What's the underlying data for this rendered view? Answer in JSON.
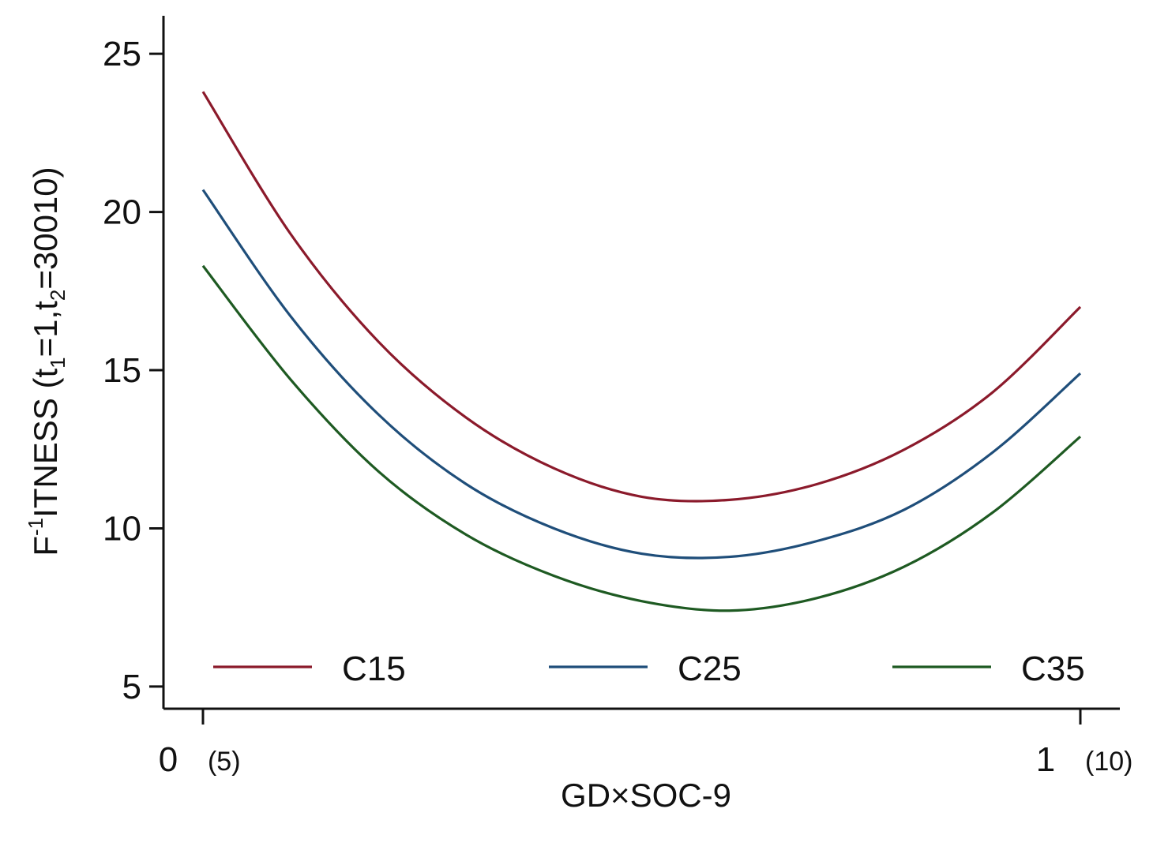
{
  "chart_data": {
    "type": "line",
    "xlabel": "GD×SOC-9",
    "ylabel": {
      "main": "F",
      "sup": "-1",
      "rest": "ITNESS (t",
      "sub1": "1",
      "mid": "=1,t",
      "sub2": "2",
      "end": "=30010)"
    },
    "ylim": [
      4.3,
      26.2
    ],
    "y_ticks": [
      5,
      10,
      15,
      20,
      25
    ],
    "y_tick_labels": [
      "5",
      "10",
      "15",
      "20",
      "25"
    ],
    "xlim": [
      -0.045,
      1.045
    ],
    "x_ticks": [
      {
        "value": 0,
        "label": "0",
        "sublabel": "(5)"
      },
      {
        "value": 1,
        "label": "1",
        "sublabel": "(10)"
      }
    ],
    "grid": false,
    "legend": "bottom",
    "series": [
      {
        "name": "C15",
        "color": "#8b1a2b",
        "x": [
          0,
          0.1,
          0.2,
          0.3,
          0.4,
          0.5,
          0.6,
          0.7,
          0.8,
          0.9,
          1
        ],
        "values": [
          23.8,
          19.3,
          15.9,
          13.5,
          11.9,
          11.0,
          10.9,
          11.4,
          12.5,
          14.3,
          17.0
        ]
      },
      {
        "name": "C25",
        "color": "#1f4e7a",
        "x": [
          0,
          0.1,
          0.2,
          0.3,
          0.4,
          0.5,
          0.6,
          0.7,
          0.8,
          0.9,
          1
        ],
        "values": [
          20.7,
          16.7,
          13.6,
          11.4,
          10.0,
          9.2,
          9.1,
          9.6,
          10.6,
          12.4,
          14.9
        ]
      },
      {
        "name": "C35",
        "color": "#1e5a22",
        "x": [
          0,
          0.1,
          0.2,
          0.3,
          0.4,
          0.5,
          0.6,
          0.7,
          0.8,
          0.9,
          1
        ],
        "values": [
          18.3,
          14.7,
          11.8,
          9.8,
          8.5,
          7.7,
          7.4,
          7.8,
          8.8,
          10.5,
          12.9
        ]
      }
    ]
  }
}
